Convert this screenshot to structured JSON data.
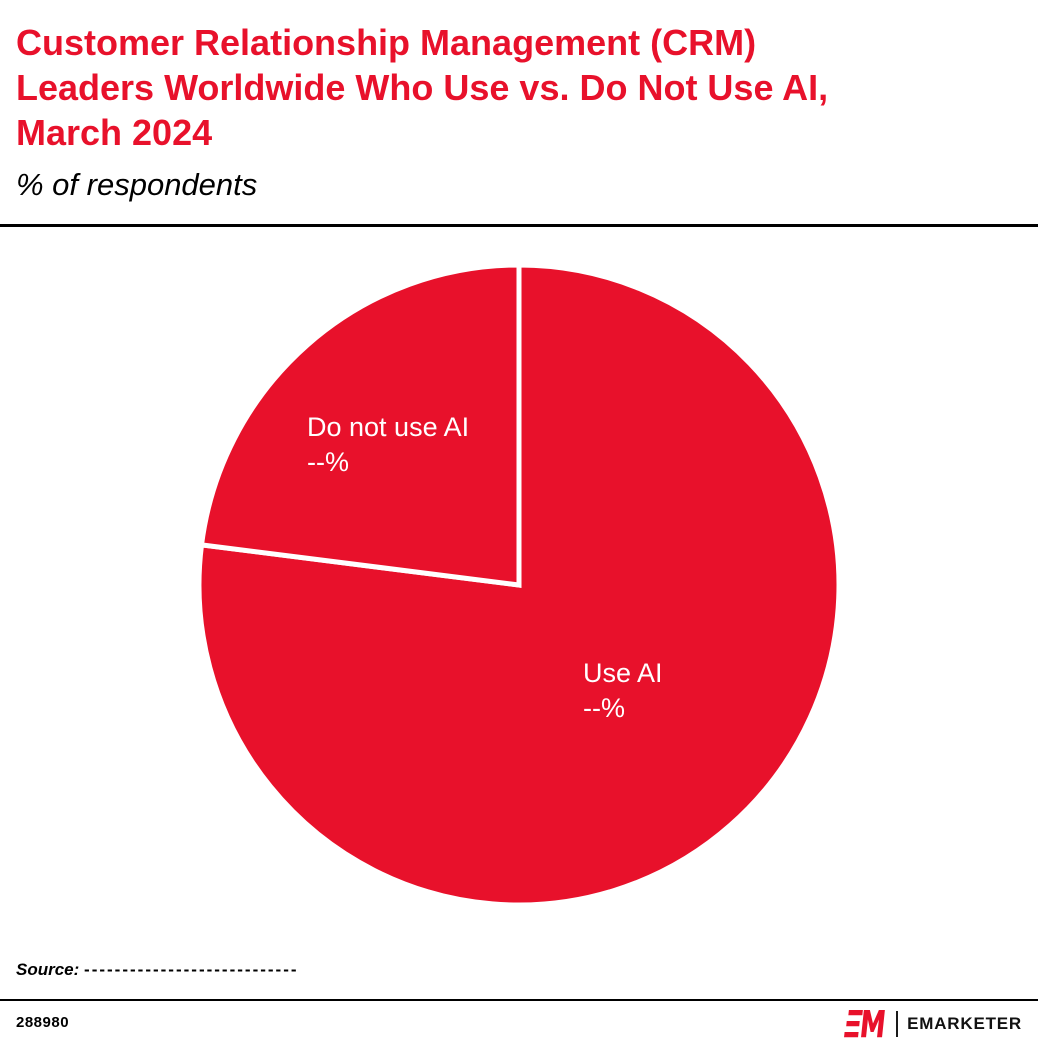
{
  "header": {
    "title_lines": [
      "Customer Relationship Management (CRM)",
      "Leaders Worldwide Who Use vs. Do Not Use AI,",
      "March 2024"
    ],
    "subtitle": "% of respondents"
  },
  "chart_data": {
    "type": "pie",
    "title": "Customer Relationship Management (CRM) Leaders Worldwide Who Use vs. Do Not Use AI, March 2024",
    "unit": "% of respondents",
    "slices": [
      {
        "label": "Use AI",
        "value_label": "--%",
        "value": 77,
        "color": "#e8112b"
      },
      {
        "label": "Do not use AI",
        "value_label": "--%",
        "value": 23,
        "color": "#e8112b"
      }
    ],
    "start_angle_deg": 0,
    "direction": "clockwise",
    "divider_color": "#ffffff",
    "legend": "none",
    "labels_position": "inside",
    "label_color": "#ffffff"
  },
  "footer": {
    "source_label": "Source:",
    "source_value": "----------------------------",
    "chart_id": "288980",
    "brand_mark": "EM",
    "brand_name": "EMARKETER"
  },
  "colors": {
    "accent_red": "#e8112b",
    "background": "#ffffff",
    "rule": "#000000"
  }
}
